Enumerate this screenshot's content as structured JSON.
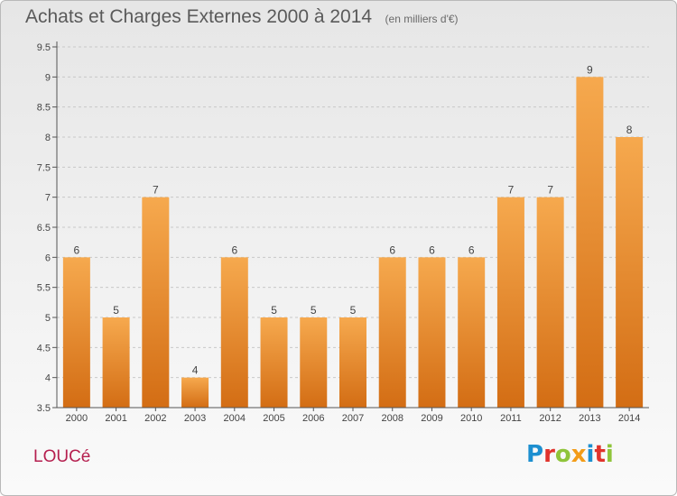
{
  "header": {
    "title": "Achats et Charges Externes 2000 à 2014",
    "subtitle": "(en milliers d'€)"
  },
  "footer": {
    "place": "LOUCé",
    "logo": {
      "text": "Proxiti",
      "letters": [
        {
          "char": "P",
          "color": "#1d8fd0"
        },
        {
          "char": "r",
          "color": "#e0332c"
        },
        {
          "char": "o",
          "color": "#8fc43a"
        },
        {
          "char": "x",
          "color": "#f39c18"
        },
        {
          "char": "i",
          "color": "#1d8fd0"
        },
        {
          "char": "t",
          "color": "#e0332c"
        },
        {
          "char": "i",
          "color": "#8fc43a"
        }
      ]
    }
  },
  "colors": {
    "bar_light": "#f6a94e",
    "bar_dark": "#d36d14",
    "grid": "#c8c8c8",
    "axis": "#555555"
  },
  "chart_data": {
    "type": "bar",
    "title": "Achats et Charges Externes 2000 à 2014",
    "subtitle": "(en milliers d'€)",
    "categories": [
      "2000",
      "2001",
      "2002",
      "2003",
      "2004",
      "2005",
      "2006",
      "2007",
      "2008",
      "2009",
      "2010",
      "2011",
      "2012",
      "2013",
      "2014"
    ],
    "values": [
      6,
      5,
      7,
      4,
      6,
      5,
      5,
      5,
      6,
      6,
      6,
      7,
      7,
      9,
      8
    ],
    "ylim": [
      3.5,
      9.5
    ],
    "yticks": [
      "3.5",
      "4",
      "4.5",
      "5",
      "5.5",
      "6",
      "6.5",
      "7",
      "7.5",
      "8",
      "8.5",
      "9",
      "9.5"
    ],
    "grid": true,
    "xlabel": "",
    "ylabel": ""
  }
}
